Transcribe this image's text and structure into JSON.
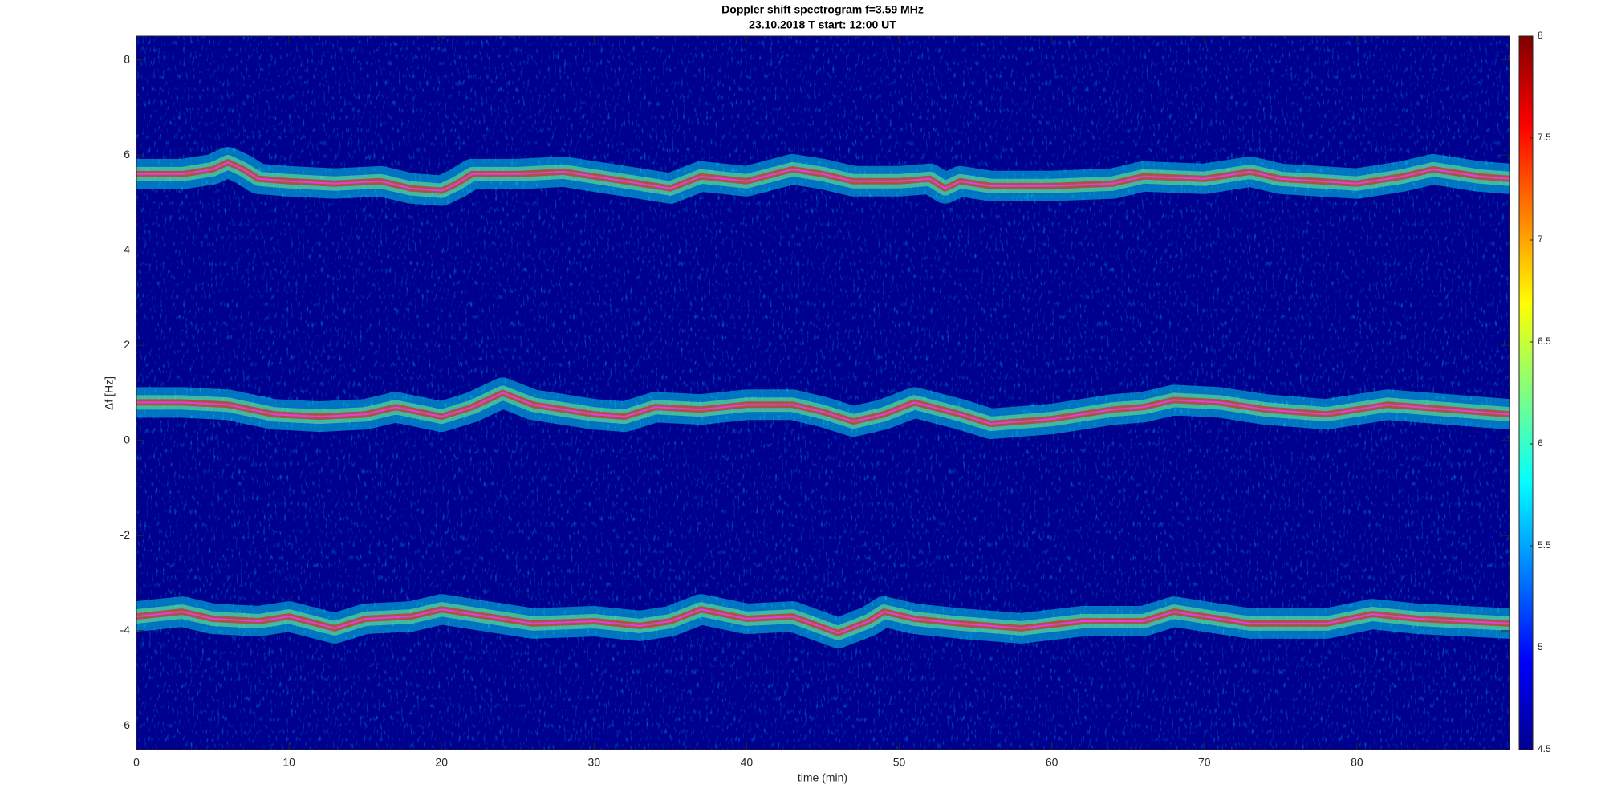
{
  "chart_data": {
    "type": "spectrogram",
    "title": "Doppler shift spectrogram f=3.59 MHz",
    "subtitle": "23.10.2018   T start: 12:00 UT",
    "xlabel": "time (min)",
    "ylabel": "Δf [Hz]",
    "xlim": [
      0,
      90
    ],
    "xticks": [
      0,
      10,
      20,
      30,
      40,
      50,
      60,
      70,
      80
    ],
    "ylim": [
      -6.5,
      8.5
    ],
    "yticks": [
      -6,
      -4,
      -2,
      0,
      2,
      4,
      6,
      8
    ],
    "colormap": "jet",
    "background_color": "#00008f",
    "clim": [
      4.5,
      8
    ],
    "cticks": [
      4.5,
      5,
      5.5,
      6,
      6.5,
      7,
      7.5,
      8
    ],
    "series": [
      {
        "color": "#e040e0",
        "x": [
          0,
          3,
          5,
          6,
          7,
          8,
          10,
          13,
          16,
          18,
          20,
          21,
          22,
          25,
          28,
          31,
          34,
          35,
          37,
          40,
          43,
          45,
          47,
          50,
          52,
          53,
          54,
          56,
          60,
          64,
          66,
          70,
          73,
          75,
          80,
          83,
          85,
          88,
          90
        ],
        "values": [
          5.6,
          5.6,
          5.7,
          5.85,
          5.7,
          5.5,
          5.45,
          5.4,
          5.45,
          5.3,
          5.25,
          5.4,
          5.6,
          5.6,
          5.65,
          5.5,
          5.35,
          5.3,
          5.55,
          5.45,
          5.7,
          5.6,
          5.45,
          5.45,
          5.5,
          5.3,
          5.45,
          5.35,
          5.35,
          5.4,
          5.55,
          5.5,
          5.65,
          5.5,
          5.4,
          5.55,
          5.7,
          5.55,
          5.5
        ]
      },
      {
        "color": "#e040e0",
        "x": [
          0,
          3,
          6,
          9,
          12,
          15,
          17,
          20,
          22,
          24,
          26,
          30,
          32,
          34,
          37,
          40,
          43,
          45,
          47,
          49,
          51,
          54,
          56,
          60,
          64,
          66,
          68,
          71,
          74,
          78,
          82,
          86,
          90
        ],
        "values": [
          0.8,
          0.8,
          0.75,
          0.55,
          0.5,
          0.55,
          0.7,
          0.5,
          0.7,
          1.0,
          0.75,
          0.55,
          0.5,
          0.7,
          0.65,
          0.75,
          0.75,
          0.6,
          0.4,
          0.55,
          0.8,
          0.55,
          0.35,
          0.45,
          0.65,
          0.7,
          0.85,
          0.8,
          0.65,
          0.55,
          0.75,
          0.65,
          0.55
        ]
      },
      {
        "color": "#e040e0",
        "x": [
          0,
          3,
          5,
          8,
          10,
          13,
          15,
          18,
          20,
          23,
          26,
          30,
          33,
          35,
          37,
          40,
          43,
          46,
          48,
          49,
          51,
          54,
          58,
          62,
          66,
          68,
          70,
          73,
          78,
          81,
          84,
          90
        ],
        "values": [
          -3.7,
          -3.6,
          -3.75,
          -3.8,
          -3.7,
          -3.95,
          -3.75,
          -3.7,
          -3.55,
          -3.7,
          -3.85,
          -3.8,
          -3.9,
          -3.8,
          -3.55,
          -3.75,
          -3.7,
          -4.05,
          -3.8,
          -3.6,
          -3.75,
          -3.85,
          -3.95,
          -3.8,
          -3.8,
          -3.6,
          -3.7,
          -3.85,
          -3.85,
          -3.65,
          -3.75,
          -3.85
        ]
      }
    ]
  }
}
